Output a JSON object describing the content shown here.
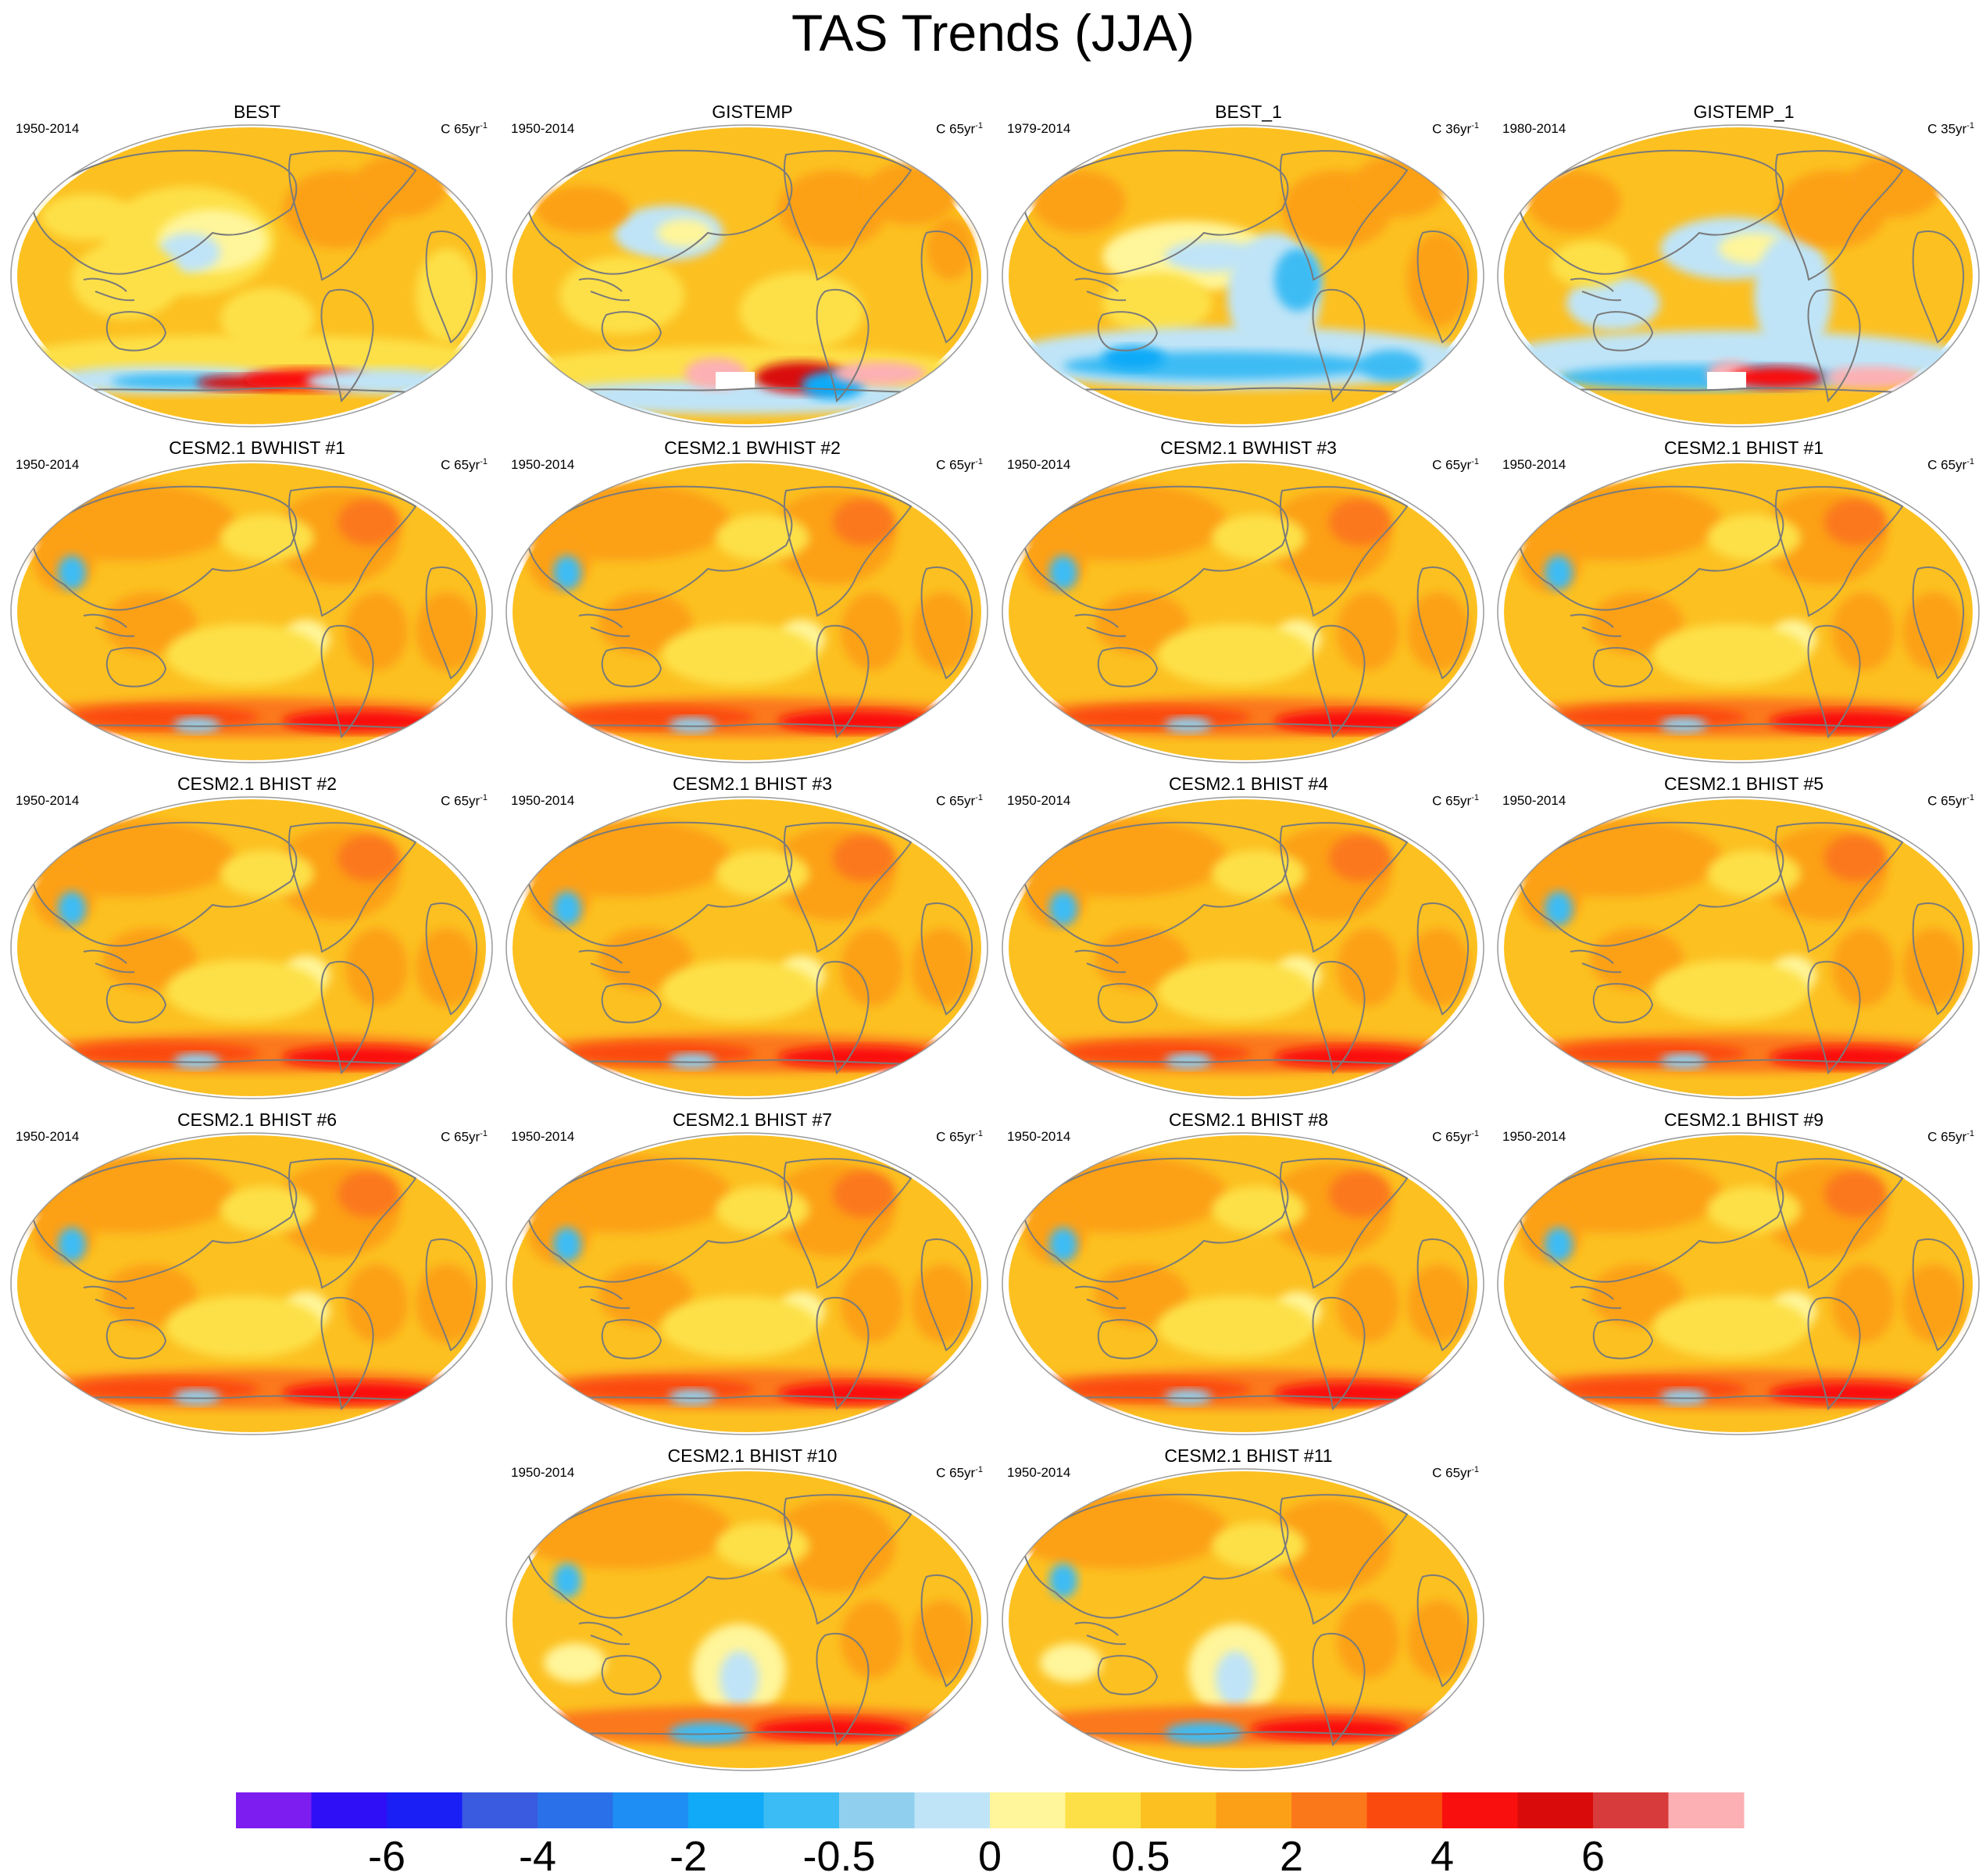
{
  "title": "TAS Trends (JJA)",
  "colors": {
    "land_outline": "#7a7a7a",
    "map_border": "#9a9a9a",
    "background_warm": "#fcc021",
    "missing": "#ffffff"
  },
  "colorbar": {
    "colors": [
      "#7d1df0",
      "#2e0ff6",
      "#1a1ff6",
      "#3a5ae0",
      "#2a70e8",
      "#1e8ef5",
      "#10aaf8",
      "#3cbcf4",
      "#90d0ee",
      "#bfe4f7",
      "#fff59a",
      "#fde047",
      "#fcc021",
      "#fca018",
      "#fb781a",
      "#fb4a0e",
      "#fa0f0f",
      "#d90b0b",
      "#d83b3b",
      "#fcb0b4"
    ],
    "tick_labels": [
      "-6",
      "-4",
      "-2",
      "-0.5",
      "0",
      "0.5",
      "2",
      "4",
      "6"
    ]
  },
  "panels": [
    {
      "title": "BEST",
      "period": "1950-2014",
      "units_pre": "C 65yr",
      "units_exp": "-1",
      "pattern": "obs_a"
    },
    {
      "title": "GISTEMP",
      "period": "1950-2014",
      "units_pre": "C 65yr",
      "units_exp": "-1",
      "pattern": "obs_b"
    },
    {
      "title": "BEST_1",
      "period": "1979-2014",
      "units_pre": "C 36yr",
      "units_exp": "-1",
      "pattern": "obs_c"
    },
    {
      "title": "GISTEMP_1",
      "period": "1980-2014",
      "units_pre": "C 35yr",
      "units_exp": "-1",
      "pattern": "obs_d"
    },
    {
      "title": "CESM2.1 BWHIST #1",
      "period": "1950-2014",
      "units_pre": "C 65yr",
      "units_exp": "-1",
      "pattern": "model"
    },
    {
      "title": "CESM2.1 BWHIST #2",
      "period": "1950-2014",
      "units_pre": "C 65yr",
      "units_exp": "-1",
      "pattern": "model"
    },
    {
      "title": "CESM2.1 BWHIST #3",
      "period": "1950-2014",
      "units_pre": "C 65yr",
      "units_exp": "-1",
      "pattern": "model"
    },
    {
      "title": "CESM2.1 BHIST #1",
      "period": "1950-2014",
      "units_pre": "C 65yr",
      "units_exp": "-1",
      "pattern": "model"
    },
    {
      "title": "CESM2.1 BHIST #2",
      "period": "1950-2014",
      "units_pre": "C 65yr",
      "units_exp": "-1",
      "pattern": "model"
    },
    {
      "title": "CESM2.1 BHIST #3",
      "period": "1950-2014",
      "units_pre": "C 65yr",
      "units_exp": "-1",
      "pattern": "model"
    },
    {
      "title": "CESM2.1 BHIST #4",
      "period": "1950-2014",
      "units_pre": "C 65yr",
      "units_exp": "-1",
      "pattern": "model"
    },
    {
      "title": "CESM2.1 BHIST #5",
      "period": "1950-2014",
      "units_pre": "C 65yr",
      "units_exp": "-1",
      "pattern": "model"
    },
    {
      "title": "CESM2.1 BHIST #6",
      "period": "1950-2014",
      "units_pre": "C 65yr",
      "units_exp": "-1",
      "pattern": "model"
    },
    {
      "title": "CESM2.1 BHIST #7",
      "period": "1950-2014",
      "units_pre": "C 65yr",
      "units_exp": "-1",
      "pattern": "model"
    },
    {
      "title": "CESM2.1 BHIST #8",
      "period": "1950-2014",
      "units_pre": "C 65yr",
      "units_exp": "-1",
      "pattern": "model"
    },
    {
      "title": "CESM2.1 BHIST #9",
      "period": "1950-2014",
      "units_pre": "C 65yr",
      "units_exp": "-1",
      "pattern": "model"
    },
    {
      "title": "CESM2.1 BHIST #10",
      "period": "1950-2014",
      "units_pre": "C 65yr",
      "units_exp": "-1",
      "pattern": "model_b"
    },
    {
      "title": "CESM2.1 BHIST #11",
      "period": "1950-2014",
      "units_pre": "C 65yr",
      "units_exp": "-1",
      "pattern": "model_b"
    }
  ]
}
